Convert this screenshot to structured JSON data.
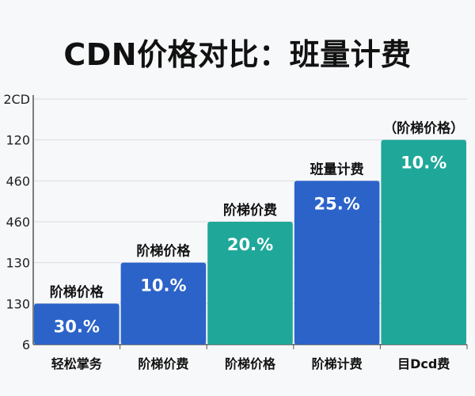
{
  "chart_data": {
    "type": "bar",
    "title": "CDN价格对比：班量计费",
    "xlabel": "",
    "ylabel": "",
    "y_tick_labels": [
      "6",
      "130",
      "130",
      "460",
      "460",
      "120",
      "2CD"
    ],
    "categories": [
      "轻松掌务",
      "阶梯价费",
      "阶梯价格",
      "阶梯计费",
      "目Dcd费"
    ],
    "values": [
      1,
      2,
      3,
      4,
      5
    ],
    "ylim": [
      0,
      6
    ],
    "bar_top_labels": [
      "阶梯价格",
      "阶梯价格",
      "阶梯价费",
      "班量计费",
      "（阶梯价格）"
    ],
    "bar_value_labels": [
      "30.%",
      "10.%",
      "20.%",
      "25.%",
      "10.%"
    ],
    "bar_colors": [
      "#2b63c9",
      "#2b63c9",
      "#1fa89a",
      "#2b63c9",
      "#1fa89a"
    ],
    "grid": true,
    "legend": "none"
  }
}
